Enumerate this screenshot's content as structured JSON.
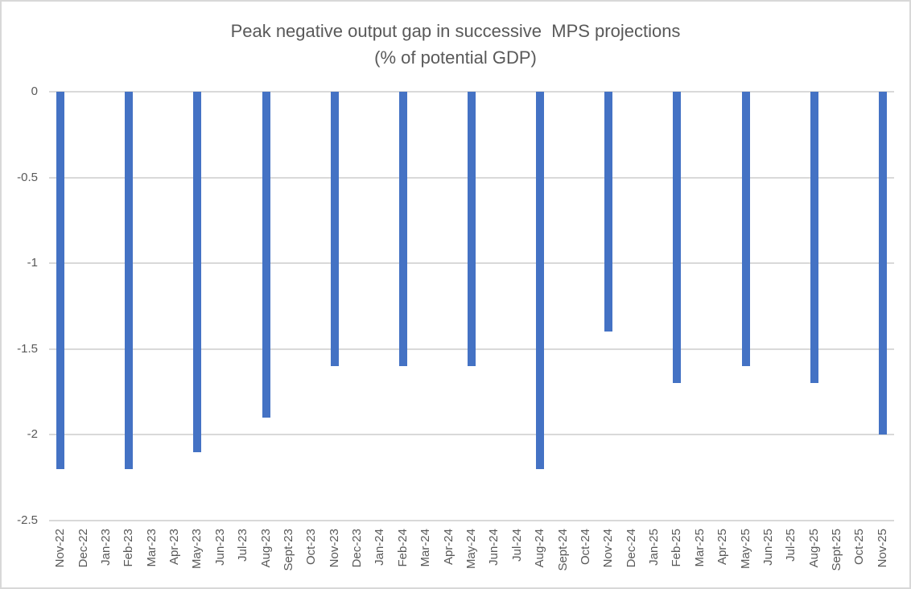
{
  "chart_data": {
    "type": "bar",
    "title": "Peak negative output gap in successive  MPS projections",
    "subtitle": "(% of potential GDP)",
    "xlabel": "",
    "ylabel": "",
    "ylim": [
      -2.5,
      0
    ],
    "grid": true,
    "legend": "none",
    "bar_color": "#4472C4",
    "gridline_color": "#D9D9D9",
    "text_color": "#595959",
    "y_tick_labels": [
      "0",
      "-0.5",
      "-1",
      "-1.5",
      "-2",
      "-2.5"
    ],
    "y_tick_values": [
      0,
      -0.5,
      -1,
      -1.5,
      -2,
      -2.5
    ],
    "categories": [
      "Nov-22",
      "Dec-22",
      "Jan-23",
      "Feb-23",
      "Mar-23",
      "Apr-23",
      "May-23",
      "Jun-23",
      "Jul-23",
      "Aug-23",
      "Sept-23",
      "Oct-23",
      "Nov-23",
      "Dec-23",
      "Jan-24",
      "Feb-24",
      "Mar-24",
      "Apr-24",
      "May-24",
      "Jun-24",
      "Jul-24",
      "Aug-24",
      "Sept-24",
      "Oct-24",
      "Nov-24",
      "Dec-24",
      "Jan-25",
      "Feb-25",
      "Mar-25",
      "Apr-25",
      "May-25",
      "Jun-25",
      "Jul-25",
      "Aug-25",
      "Sept-25",
      "Oct-25",
      "Nov-25"
    ],
    "values": [
      -2.2,
      null,
      null,
      -2.2,
      null,
      null,
      -2.1,
      null,
      null,
      -1.9,
      null,
      null,
      -1.6,
      null,
      null,
      -1.6,
      null,
      null,
      -1.6,
      null,
      null,
      -2.2,
      null,
      null,
      -1.4,
      null,
      null,
      -1.7,
      null,
      null,
      -1.6,
      null,
      null,
      -1.7,
      null,
      null,
      -2.0
    ]
  }
}
